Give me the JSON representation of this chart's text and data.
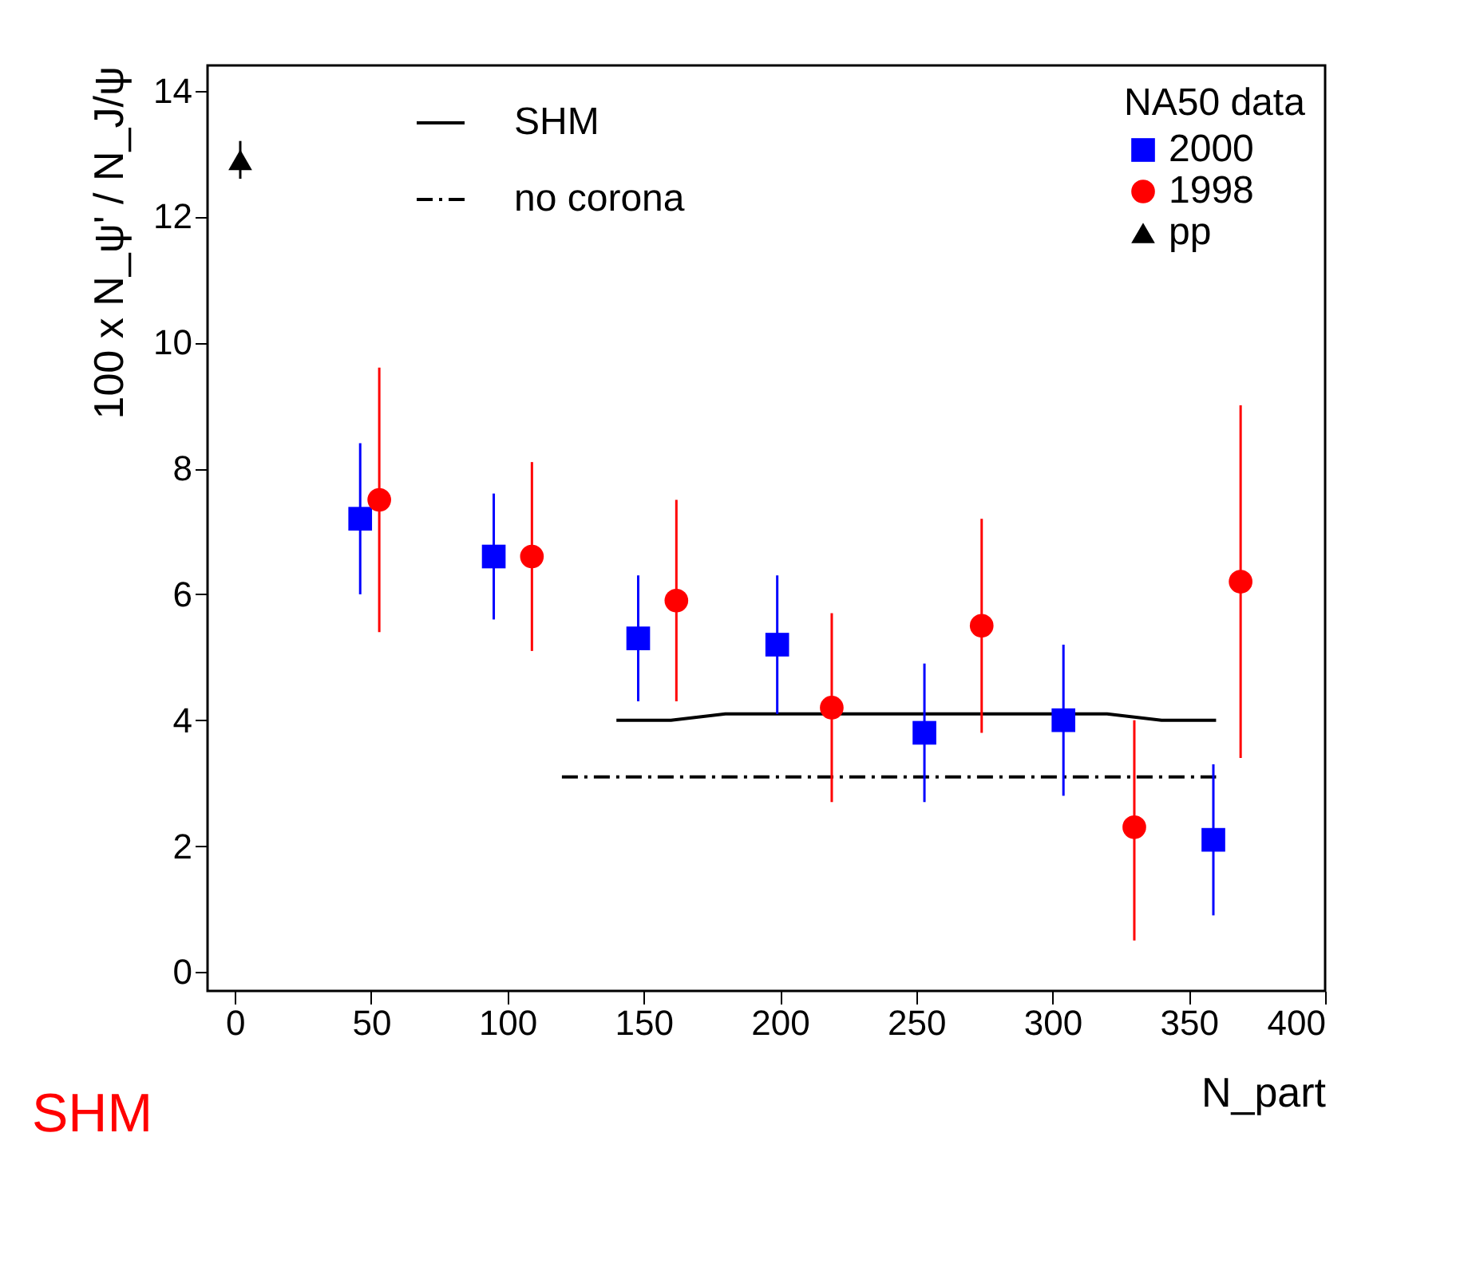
{
  "chart_data": {
    "type": "scatter",
    "xlabel": "N_part",
    "ylabel": "100 x N_ψ' / N_J/ψ",
    "legend_title": "NA50 data",
    "xlim": [
      -10,
      400
    ],
    "ylim": [
      -0.3,
      14.4
    ],
    "xticks": [
      0,
      50,
      100,
      150,
      200,
      250,
      300,
      350,
      400
    ],
    "yticks": [
      0,
      2,
      4,
      6,
      8,
      10,
      12,
      14
    ],
    "grid": false,
    "legend": "top right",
    "annotations": [
      "SHM"
    ],
    "series": [
      {
        "name": "SHM",
        "type": "line",
        "color": "#000000",
        "line_style": "solid",
        "x": [
          140,
          160,
          180,
          320,
          340,
          360
        ],
        "values": [
          4.0,
          4.0,
          4.1,
          4.1,
          4.0,
          4.0
        ]
      },
      {
        "name": "no corona",
        "type": "line",
        "color": "#000000",
        "line_style": "dashed",
        "x": [
          120,
          360
        ],
        "values": [
          3.1,
          3.1
        ]
      },
      {
        "name": "2000",
        "type": "scatter",
        "color": "#0000ff",
        "marker": "square",
        "x": [
          46,
          95,
          148,
          199,
          253,
          304,
          359
        ],
        "values": [
          7.2,
          6.6,
          5.3,
          5.2,
          3.8,
          4.0,
          2.1
        ],
        "errors": [
          [
            6.0,
            8.4
          ],
          [
            5.6,
            7.6
          ],
          [
            4.3,
            6.3
          ],
          [
            4.1,
            6.3
          ],
          [
            2.7,
            4.9
          ],
          [
            2.8,
            5.2
          ],
          [
            0.9,
            3.3
          ]
        ]
      },
      {
        "name": "1998",
        "type": "scatter",
        "color": "#ff0000",
        "marker": "circle",
        "x": [
          53,
          109,
          162,
          219,
          274,
          330,
          369
        ],
        "values": [
          7.5,
          6.6,
          5.9,
          4.2,
          5.5,
          2.3,
          6.2
        ],
        "errors": [
          [
            5.4,
            9.6
          ],
          [
            5.1,
            8.1
          ],
          [
            4.3,
            7.5
          ],
          [
            2.7,
            5.7
          ],
          [
            3.8,
            7.2
          ],
          [
            0.5,
            4.0
          ],
          [
            3.4,
            9.0
          ]
        ]
      },
      {
        "name": "pp",
        "color": "#000000",
        "marker": "triangle",
        "x": [
          2
        ],
        "values": [
          12.9
        ],
        "errors": [
          [
            12.6,
            13.2
          ]
        ]
      }
    ]
  }
}
